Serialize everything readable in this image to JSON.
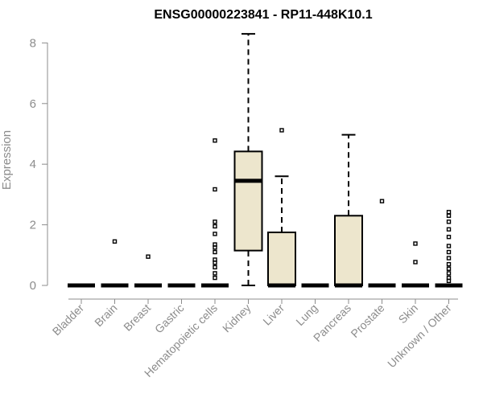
{
  "chart_data": {
    "type": "boxplot",
    "title": "ENSG00000223841 - RP11-448K10.1",
    "ylabel": "Expression",
    "ylim": [
      0,
      8.4
    ],
    "yticks": [
      0,
      2,
      4,
      6,
      8
    ],
    "box_color": "#ede6cd",
    "categories": [
      "Bladder",
      "Brain",
      "Breast",
      "Gastric",
      "Hematopoietic cells",
      "Kidney",
      "Liver",
      "Lung",
      "Pancreas",
      "Prostate",
      "Skin",
      "Unknown / Other"
    ],
    "boxes": [
      {
        "q1": 0,
        "median": 0,
        "q3": 0,
        "whisker_low": 0,
        "whisker_high": 0,
        "outliers": []
      },
      {
        "q1": 0,
        "median": 0,
        "q3": 0,
        "whisker_low": 0,
        "whisker_high": 0,
        "outliers": [
          1.45
        ]
      },
      {
        "q1": 0,
        "median": 0,
        "q3": 0,
        "whisker_low": 0,
        "whisker_high": 0,
        "outliers": [
          0.95
        ]
      },
      {
        "q1": 0,
        "median": 0,
        "q3": 0,
        "whisker_low": 0,
        "whisker_high": 0,
        "outliers": []
      },
      {
        "q1": 0,
        "median": 0,
        "q3": 0,
        "whisker_low": 0,
        "whisker_high": 0,
        "outliers": [
          4.78,
          3.17,
          2.1,
          1.95,
          1.7,
          1.35,
          1.25,
          1.1,
          0.85,
          0.75,
          0.6,
          0.4,
          0.25
        ]
      },
      {
        "q1": 1.15,
        "median": 3.45,
        "q3": 4.42,
        "whisker_low": 0,
        "whisker_high": 8.3,
        "outliers": []
      },
      {
        "q1": 0,
        "median": 0,
        "q3": 1.75,
        "whisker_low": 0,
        "whisker_high": 3.6,
        "outliers": [
          5.12
        ]
      },
      {
        "q1": 0,
        "median": 0,
        "q3": 0,
        "whisker_low": 0,
        "whisker_high": 0,
        "outliers": []
      },
      {
        "q1": 0,
        "median": 0,
        "q3": 2.3,
        "whisker_low": 0,
        "whisker_high": 4.97,
        "outliers": []
      },
      {
        "q1": 0,
        "median": 0,
        "q3": 0,
        "whisker_low": 0,
        "whisker_high": 0,
        "outliers": [
          2.78
        ]
      },
      {
        "q1": 0,
        "median": 0,
        "q3": 0,
        "whisker_low": 0,
        "whisker_high": 0,
        "outliers": [
          1.38,
          0.77
        ]
      },
      {
        "q1": 0,
        "median": 0,
        "q3": 0,
        "whisker_low": 0,
        "whisker_high": 0,
        "outliers": [
          2.42,
          2.3,
          2.1,
          1.85,
          1.6,
          1.3,
          1.1,
          0.9,
          0.7,
          0.55,
          0.4,
          0.25,
          0.15
        ]
      }
    ]
  }
}
